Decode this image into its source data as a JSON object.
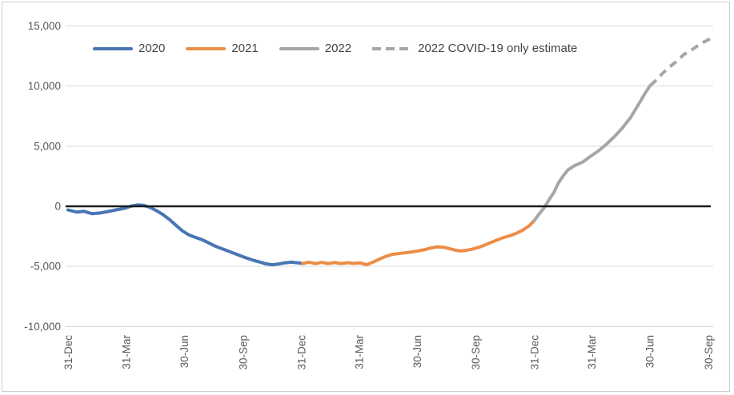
{
  "chart_data": {
    "type": "line",
    "title": "",
    "xlabel": "",
    "ylabel": "",
    "legend_position": "top",
    "grid": "horizontal",
    "frame_border_color": "#cfcfcf",
    "gridline_color": "#d9d9d9",
    "zero_line_color": "#1a1a1a",
    "tick_text_color": "#595959",
    "x_axis": {
      "range_days": [
        0,
        1011
      ],
      "ticks": [
        {
          "day": 0,
          "label": "31-Dec"
        },
        {
          "day": 91,
          "label": "31-Mar"
        },
        {
          "day": 182,
          "label": "30-Jun"
        },
        {
          "day": 274,
          "label": "30-Sep"
        },
        {
          "day": 366,
          "label": "31-Dec"
        },
        {
          "day": 456,
          "label": "31-Mar"
        },
        {
          "day": 547,
          "label": "30-Jun"
        },
        {
          "day": 639,
          "label": "30-Sep"
        },
        {
          "day": 731,
          "label": "31-Dec"
        },
        {
          "day": 821,
          "label": "31-Mar"
        },
        {
          "day": 912,
          "label": "30-Jun"
        },
        {
          "day": 1004,
          "label": "30-Sep"
        }
      ]
    },
    "y_axis": {
      "range": [
        -10000,
        15000
      ],
      "zero_line": true,
      "ticks": [
        {
          "value": 15000,
          "label": "15,000"
        },
        {
          "value": 10000,
          "label": "10,000"
        },
        {
          "value": 5000,
          "label": "5,000"
        },
        {
          "value": 0,
          "label": "0"
        },
        {
          "value": -5000,
          "label": "-5,000"
        },
        {
          "value": -10000,
          "label": "-10,000"
        }
      ]
    },
    "series": [
      {
        "name": "2020",
        "color": "#4876b4",
        "style": "solid",
        "points": [
          [
            0,
            -300
          ],
          [
            13,
            -480
          ],
          [
            25,
            -420
          ],
          [
            38,
            -620
          ],
          [
            50,
            -560
          ],
          [
            63,
            -430
          ],
          [
            75,
            -300
          ],
          [
            88,
            -170
          ],
          [
            100,
            30
          ],
          [
            109,
            110
          ],
          [
            119,
            70
          ],
          [
            129,
            -100
          ],
          [
            139,
            -370
          ],
          [
            149,
            -700
          ],
          [
            159,
            -1100
          ],
          [
            169,
            -1570
          ],
          [
            179,
            -2030
          ],
          [
            189,
            -2370
          ],
          [
            199,
            -2570
          ],
          [
            210,
            -2770
          ],
          [
            220,
            -3030
          ],
          [
            230,
            -3300
          ],
          [
            240,
            -3500
          ],
          [
            250,
            -3700
          ],
          [
            260,
            -3900
          ],
          [
            270,
            -4100
          ],
          [
            280,
            -4300
          ],
          [
            290,
            -4480
          ],
          [
            300,
            -4630
          ],
          [
            310,
            -4780
          ],
          [
            320,
            -4860
          ],
          [
            330,
            -4800
          ],
          [
            340,
            -4700
          ],
          [
            350,
            -4650
          ],
          [
            360,
            -4700
          ],
          [
            368,
            -4760
          ]
        ]
      },
      {
        "name": "2021",
        "color": "#ec8d47",
        "style": "solid",
        "points": [
          [
            368,
            -4760
          ],
          [
            378,
            -4650
          ],
          [
            388,
            -4770
          ],
          [
            398,
            -4660
          ],
          [
            408,
            -4760
          ],
          [
            418,
            -4680
          ],
          [
            428,
            -4760
          ],
          [
            438,
            -4690
          ],
          [
            448,
            -4750
          ],
          [
            458,
            -4700
          ],
          [
            468,
            -4860
          ],
          [
            478,
            -4640
          ],
          [
            488,
            -4400
          ],
          [
            498,
            -4170
          ],
          [
            508,
            -4000
          ],
          [
            518,
            -3930
          ],
          [
            528,
            -3870
          ],
          [
            538,
            -3800
          ],
          [
            548,
            -3720
          ],
          [
            558,
            -3620
          ],
          [
            568,
            -3480
          ],
          [
            578,
            -3380
          ],
          [
            588,
            -3400
          ],
          [
            598,
            -3520
          ],
          [
            608,
            -3660
          ],
          [
            615,
            -3720
          ],
          [
            623,
            -3680
          ],
          [
            633,
            -3570
          ],
          [
            643,
            -3430
          ],
          [
            653,
            -3230
          ],
          [
            663,
            -3010
          ],
          [
            673,
            -2790
          ],
          [
            683,
            -2590
          ],
          [
            693,
            -2440
          ],
          [
            703,
            -2240
          ],
          [
            713,
            -1980
          ],
          [
            723,
            -1620
          ],
          [
            731,
            -1180
          ]
        ]
      },
      {
        "name": "2022",
        "color": "#a6a6a6",
        "style": "solid",
        "points": [
          [
            731,
            -1180
          ],
          [
            739,
            -620
          ],
          [
            747,
            -90
          ],
          [
            754,
            530
          ],
          [
            762,
            1170
          ],
          [
            769,
            1950
          ],
          [
            777,
            2580
          ],
          [
            784,
            3030
          ],
          [
            794,
            3380
          ],
          [
            807,
            3680
          ],
          [
            819,
            4150
          ],
          [
            832,
            4620
          ],
          [
            844,
            5150
          ],
          [
            857,
            5820
          ],
          [
            869,
            6500
          ],
          [
            882,
            7380
          ],
          [
            895,
            8520
          ],
          [
            906,
            9500
          ],
          [
            913,
            10050
          ]
        ]
      },
      {
        "name": "2022 COVID-19 only estimate",
        "color": "#a6a6a6",
        "style": "dashed",
        "points": [
          [
            913,
            10050
          ],
          [
            921,
            10440
          ],
          [
            928,
            10830
          ],
          [
            941,
            11500
          ],
          [
            954,
            12050
          ],
          [
            966,
            12630
          ],
          [
            979,
            13050
          ],
          [
            991,
            13500
          ],
          [
            1004,
            13850
          ],
          [
            1011,
            14120
          ]
        ]
      }
    ]
  }
}
